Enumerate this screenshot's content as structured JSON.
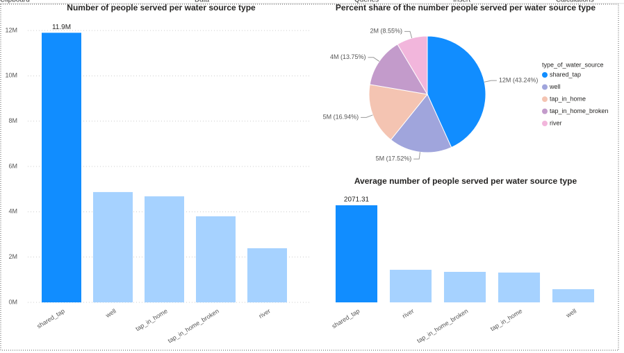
{
  "ribbon": [
    "Clipboard",
    "Data",
    "Queries",
    "Insert",
    "Calculations"
  ],
  "chart_data": [
    {
      "type": "bar",
      "title": "Number of people served per water source type",
      "categories": [
        "shared_tap",
        "well",
        "tap_in_home",
        "tap_in_home_broken",
        "river"
      ],
      "values": [
        11900000,
        4870000,
        4680000,
        3800000,
        2390000
      ],
      "value_labels": [
        "11.9M",
        null,
        null,
        null,
        null
      ],
      "colors": [
        "#118DFF",
        "#A6D2FF",
        "#A6D2FF",
        "#A6D2FF",
        "#A6D2FF"
      ],
      "ylim": [
        0,
        12000000
      ],
      "yticks": [
        {
          "value": 0,
          "label": "0M"
        },
        {
          "value": 2000000,
          "label": "2M"
        },
        {
          "value": 4000000,
          "label": "4M"
        },
        {
          "value": 6000000,
          "label": "6M"
        },
        {
          "value": 8000000,
          "label": "8M"
        },
        {
          "value": 10000000,
          "label": "10M"
        },
        {
          "value": 12000000,
          "label": "12M"
        }
      ],
      "grid": true
    },
    {
      "type": "pie",
      "title": "Percent share of the number people served per water source type",
      "categories": [
        "shared_tap",
        "well",
        "tap_in_home",
        "tap_in_home_broken",
        "river"
      ],
      "values": [
        43.24,
        17.52,
        16.94,
        13.75,
        8.55
      ],
      "value_labels": [
        "12M (43.24%)",
        "5M (17.52%)",
        "5M (16.94%)",
        "4M (13.75%)",
        "2M (8.55%)"
      ],
      "colors": [
        "#118DFF",
        "#A0A5DC",
        "#F4C4B2",
        "#C39BCB",
        "#F2B6DC"
      ],
      "legend_title": "type_of_water_source",
      "legend": "right"
    },
    {
      "type": "bar",
      "title": "Average number of people served per water source type",
      "categories": [
        "shared_tap",
        "river",
        "tap_in_home_broken",
        "tap_in_home",
        "well"
      ],
      "values": [
        2071.31,
        695,
        651,
        636,
        281
      ],
      "value_labels": [
        "2071.31",
        null,
        null,
        null,
        null
      ],
      "colors": [
        "#118DFF",
        "#A6D2FF",
        "#A6D2FF",
        "#A6D2FF",
        "#A6D2FF"
      ],
      "grid": false
    }
  ]
}
